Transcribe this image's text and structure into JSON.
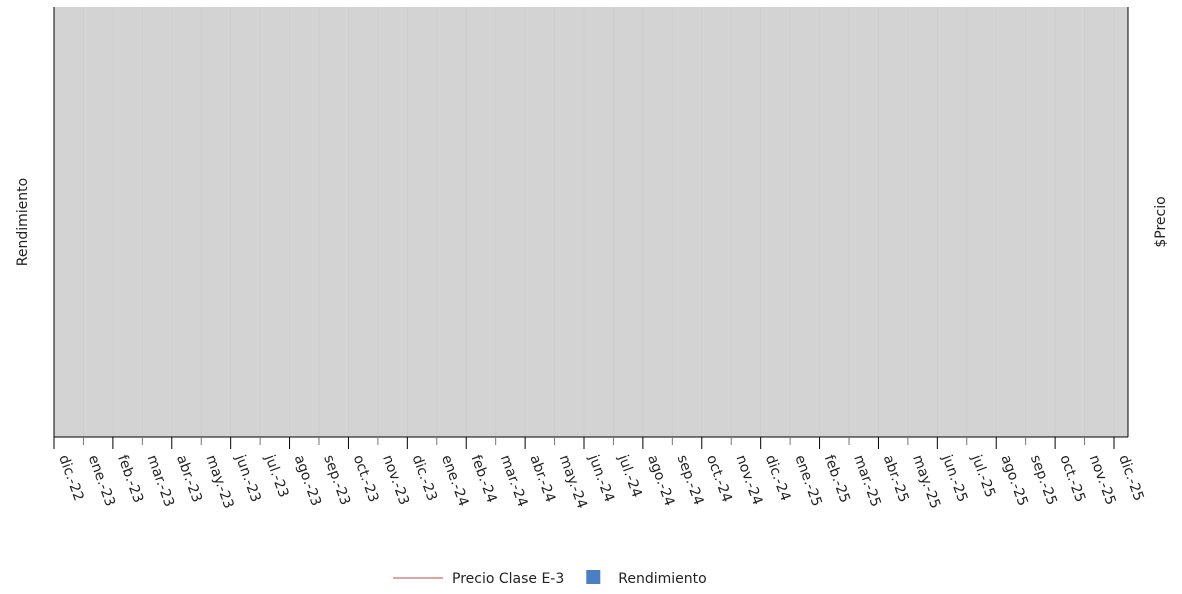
{
  "chart_data": {
    "type": "combo",
    "categories": [
      "dic.-22",
      "ene.-23",
      "feb.-23",
      "mar.-23",
      "abr.-23",
      "may.-23",
      "jun.-23",
      "jul.-23",
      "ago.-23",
      "sep.-23",
      "oct.-23",
      "nov.-23",
      "dic.-23",
      "ene.-24",
      "feb.-24",
      "mar.-24",
      "abr.-24",
      "may.-24",
      "jun.-24",
      "jul.-24",
      "ago.-24",
      "sep.-24",
      "oct.-24",
      "nov.-24",
      "dic.-24",
      "ene.-25",
      "feb.-25",
      "mar.-25",
      "abr.-25",
      "may.-25",
      "jun.-25",
      "jul.-25",
      "ago.-25",
      "sep.-25",
      "oct.-25",
      "nov.-25",
      "dic.-25"
    ],
    "y_label": "Rendimiento",
    "y2_label": "$Precio",
    "series": [
      {
        "name": "Precio Clase E-3",
        "kind": "line",
        "axis": "y2",
        "color": "#e8a0a0",
        "values": [
          null,
          null,
          null,
          null,
          null,
          null,
          null,
          null,
          null,
          null,
          null,
          null,
          null,
          null,
          null,
          null,
          null,
          null,
          null,
          null,
          null,
          null,
          null,
          null,
          null,
          null,
          null,
          null,
          null,
          null,
          null,
          null,
          null,
          null,
          null,
          null,
          null
        ]
      },
      {
        "name": "Rendimiento",
        "kind": "bar",
        "color": "#4a7fc4",
        "values": [
          null,
          null,
          null,
          null,
          null,
          null,
          null,
          null,
          null,
          null,
          null,
          null,
          null,
          null,
          null,
          null,
          null,
          null,
          null,
          null,
          null,
          null,
          null,
          null,
          null,
          null,
          null,
          null,
          null,
          null,
          null,
          null,
          null,
          null,
          null,
          null,
          null
        ]
      }
    ]
  }
}
